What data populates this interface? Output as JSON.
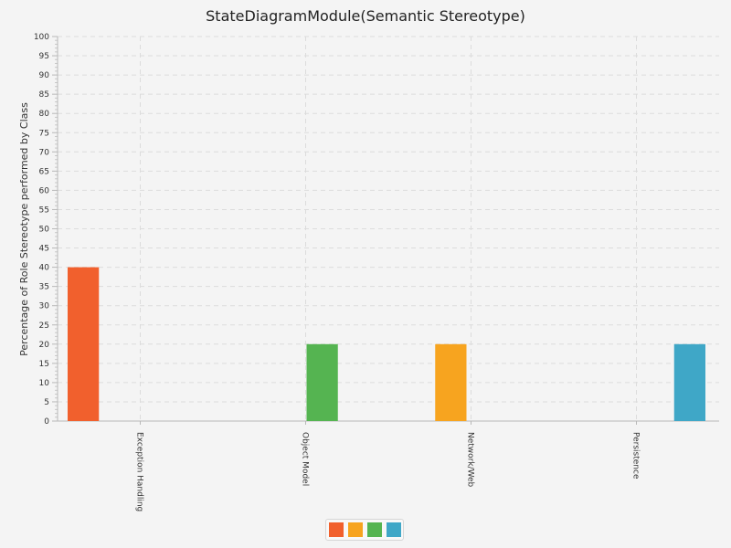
{
  "chart_data": {
    "type": "bar",
    "title": "StateDiagramModule(Semantic Stereotype)",
    "xlabel": "",
    "ylabel": "Percentage of Role Stereotype performed by Class",
    "ylim": [
      0,
      100
    ],
    "y_major_step": 5,
    "y_minor_step": 1,
    "grid": true,
    "legend": "bottom-center",
    "categories": [
      "Exception Handling",
      "Object Model",
      "Network/Web",
      "Persistence"
    ],
    "series": [
      {
        "color": "#f1602d",
        "values": [
          40,
          0,
          0,
          0
        ]
      },
      {
        "color": "#f7a41f",
        "values": [
          0,
          0,
          20,
          0
        ]
      },
      {
        "color": "#55b451",
        "values": [
          0,
          20,
          0,
          0
        ]
      },
      {
        "color": "#3fa7c7",
        "values": [
          0,
          0,
          0,
          20
        ]
      }
    ]
  }
}
